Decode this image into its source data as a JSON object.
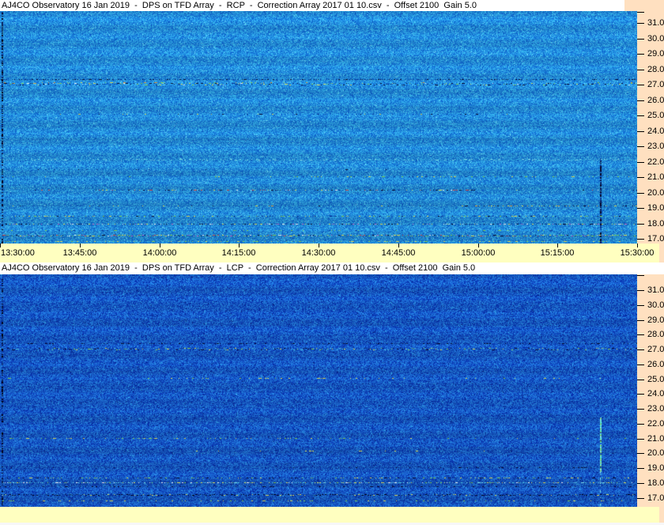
{
  "window": {
    "background": "#FFE0C0",
    "time_strip_bg": "#FFFFC0",
    "titlebar_bg": "#FFFFFF",
    "text_color": "#000000"
  },
  "panels": [
    {
      "title": "AJ4CO Observatory 16 Jan 2019  -  DPS on TFD Array  -  RCP  -  Correction Array 2017 01 10.csv  -  Offset 2100  Gain 5.0",
      "freq_ticks": [
        "31.0",
        "30.0",
        "29.0",
        "28.0",
        "27.0",
        "26.0",
        "25.0",
        "24.0",
        "23.0",
        "22.0",
        "21.0",
        "20.0",
        "19.0",
        "18.0",
        "17.0"
      ],
      "time_ticks": [
        "13:30:00",
        "13:45:00",
        "14:00:00",
        "14:15:00",
        "14:30:00",
        "14:45:00",
        "15:00:00",
        "15:15:00",
        "15:30:00"
      ]
    },
    {
      "title": "AJ4CO Observatory 16 Jan 2019  -  DPS on TFD Array  -  LCP  -  Correction Array 2017 01 10.csv  -  Offset 2100  Gain 5.0",
      "freq_ticks": [
        "31.0",
        "30.0",
        "29.0",
        "28.0",
        "27.0",
        "26.0",
        "25.0",
        "24.0",
        "23.0",
        "22.0",
        "21.0",
        "20.0",
        "19.0",
        "18.0",
        "17.0"
      ],
      "time_ticks": []
    }
  ],
  "speckle_colors": {
    "yellow": "#D8D855",
    "green": "#7CC850",
    "white": "#F0F0F0",
    "red": "#C84040",
    "magenta": "#C060C0",
    "dark": "#06062A",
    "navy": "#0A3C96",
    "black": "#000010",
    "cyan": "#50C8DC",
    "lightcyan": "#7CDCE6",
    "brightcyan": "#50E6C8",
    "orange": "#D89A3C"
  },
  "chart_data": [
    {
      "type": "heatmap",
      "title": "AJ4CO Observatory 16 Jan 2019  -  DPS on TFD Array  -  RCP  -  Correction Array 2017 01 10.csv  -  Offset 2100  Gain 5.0",
      "polarization": "RCP",
      "time_start": "13:30:00",
      "time_end": "15:30:00",
      "time_tick_interval_min": 15,
      "freq_axis_mhz": [
        17.0,
        31.0
      ],
      "freq_tick_step_mhz": 1.0,
      "legend_position": "none",
      "grid": false,
      "base": {
        "dark": "#0A58BE",
        "light": "#38B4E4",
        "spark": "#82E6F0",
        "dark_spark": "#063C9B",
        "spark_p": 0.03,
        "dark_spark_p": 0.02
      },
      "bands": [
        {
          "f": 27.35,
          "h": 1,
          "density": 0.4,
          "x0": 0,
          "x1": 1,
          "colors": [
            "navy",
            "dark"
          ]
        },
        {
          "f": 27.05,
          "h": 3,
          "density": 0.55,
          "x0": 0,
          "x1": 1,
          "colors": [
            "dark",
            "navy",
            "dark",
            "yellow",
            "green",
            "white",
            "navy",
            "dark"
          ]
        },
        {
          "f": 27.1,
          "h": 2,
          "density": 0.15,
          "x0": 0,
          "x1": 0.45,
          "colors": [
            "yellow",
            "orange",
            "green"
          ]
        },
        {
          "f": 25.1,
          "h": 1,
          "density": 0.09,
          "x0": 0.05,
          "x1": 0.75,
          "colors": [
            "navy",
            "dark",
            "yellow"
          ]
        },
        {
          "f": 22.15,
          "h": 2,
          "density": 0.22,
          "x0": 0,
          "x1": 1,
          "colors": [
            "lightcyan"
          ]
        },
        {
          "f": 21.5,
          "h": 1,
          "density": 0.12,
          "x0": 0.03,
          "x1": 0.25,
          "colors": [
            "navy",
            "dark"
          ]
        },
        {
          "f": 21.05,
          "h": 1,
          "density": 0.15,
          "x0": 0.45,
          "x1": 1,
          "colors": [
            "yellow",
            "green",
            "navy"
          ]
        },
        {
          "f": 20.2,
          "h": 1,
          "density": 0.3,
          "x0": 0.15,
          "x1": 0.75,
          "colors": [
            "dark",
            "white",
            "yellow",
            "red",
            "navy",
            "dark"
          ]
        },
        {
          "f": 19.15,
          "h": 1,
          "density": 0.2,
          "x0": 0.72,
          "x1": 1,
          "colors": [
            "yellow",
            "orange",
            "dark"
          ]
        },
        {
          "f": 18.5,
          "h": 1,
          "density": 0.3,
          "x0": 0.02,
          "x1": 1,
          "colors": [
            "yellow",
            "green",
            "navy",
            "dark",
            "cyan"
          ]
        },
        {
          "f": 17.95,
          "h": 1,
          "density": 0.38,
          "x0": 0,
          "x1": 1,
          "colors": [
            "dark",
            "navy",
            "dark",
            "yellow",
            "magenta",
            "white"
          ]
        },
        {
          "f": 17.55,
          "h": 1,
          "density": 0.1,
          "x0": 0,
          "x1": 1,
          "colors": [
            "green",
            "navy"
          ]
        },
        {
          "f": 17.2,
          "h": 2,
          "density": 0.6,
          "x0": 0,
          "x1": 1,
          "colors": [
            "yellow",
            "green",
            "white",
            "red",
            "dark",
            "magenta",
            "yellow",
            "green"
          ]
        },
        {
          "f": 16.85,
          "h": 1,
          "density": 0.25,
          "x0": 0,
          "x1": 1,
          "colors": [
            "green",
            "yellow",
            "cyan"
          ]
        }
      ],
      "verticals": [
        {
          "x_frac": 0.002,
          "f0": 31.8,
          "f1": 16.7,
          "width": 2,
          "density": 0.5,
          "colors": [
            "dark",
            "navy",
            "black"
          ]
        },
        {
          "x_frac": 0.943,
          "f0": 22.3,
          "f1": 16.7,
          "width": 2,
          "density": 0.8,
          "colors": [
            "navy",
            "dark"
          ]
        }
      ]
    },
    {
      "type": "heatmap",
      "title": "AJ4CO Observatory 16 Jan 2019  -  DPS on TFD Array  -  LCP  -  Correction Array 2017 01 10.csv  -  Offset 2100  Gain 5.0",
      "polarization": "LCP",
      "time_start": "13:30:00",
      "time_end": "15:30:00",
      "time_tick_interval_min": 15,
      "freq_axis_mhz": [
        17.0,
        31.0
      ],
      "freq_tick_step_mhz": 1.0,
      "legend_position": "none",
      "grid": false,
      "base": {
        "dark": "#0528A0",
        "light": "#2582DC",
        "spark": "#41BEE8",
        "dark_spark": "#021264",
        "spark_p": 0.02,
        "dark_spark_p": 0.03
      },
      "bands": [
        {
          "f": 27.45,
          "h": 1,
          "density": 0.35,
          "x0": 0,
          "x1": 1,
          "colors": [
            "navy",
            "dark"
          ]
        },
        {
          "f": 27.05,
          "h": 3,
          "density": 0.5,
          "x0": 0,
          "x1": 1,
          "colors": [
            "green",
            "yellow",
            "cyan",
            "dark",
            "navy",
            "green",
            "dark"
          ]
        },
        {
          "f": 25.1,
          "h": 1,
          "density": 0.1,
          "x0": 0.25,
          "x1": 0.45,
          "colors": [
            "yellow",
            "green"
          ]
        },
        {
          "f": 25.1,
          "h": 1,
          "density": 0.04,
          "x0": 0.45,
          "x1": 0.9,
          "colors": [
            "yellow",
            "navy"
          ]
        },
        {
          "f": 21.05,
          "h": 1,
          "density": 0.12,
          "x0": 0,
          "x1": 0.55,
          "colors": [
            "yellow",
            "green"
          ]
        },
        {
          "f": 20.15,
          "h": 1,
          "density": 0.07,
          "x0": 0.3,
          "x1": 0.8,
          "colors": [
            "navy",
            "yellow"
          ]
        },
        {
          "f": 19.05,
          "h": 1,
          "density": 0.2,
          "x0": 0.55,
          "x1": 0.95,
          "colors": [
            "dark",
            "navy"
          ]
        },
        {
          "f": 18.35,
          "h": 1,
          "density": 0.25,
          "x0": 0,
          "x1": 1,
          "colors": [
            "yellow",
            "navy",
            "green",
            "dark"
          ]
        },
        {
          "f": 18.05,
          "h": 1,
          "density": 0.4,
          "x0": 0,
          "x1": 1,
          "colors": [
            "cyan",
            "yellow",
            "white",
            "green",
            "lightcyan"
          ]
        },
        {
          "f": 17.8,
          "h": 1,
          "density": 0.2,
          "x0": 0,
          "x1": 1,
          "colors": [
            "dark",
            "navy"
          ]
        },
        {
          "f": 17.2,
          "h": 2,
          "density": 0.7,
          "x0": 0,
          "x1": 1,
          "colors": [
            "black",
            "dark",
            "navy",
            "dark",
            "black",
            "yellow"
          ]
        },
        {
          "f": 16.8,
          "h": 1,
          "density": 0.18,
          "x0": 0,
          "x1": 1,
          "colors": [
            "green",
            "navy",
            "yellow"
          ]
        }
      ],
      "verticals": [
        {
          "x_frac": 0.002,
          "f0": 31.8,
          "f1": 16.5,
          "width": 2,
          "density": 0.5,
          "colors": [
            "dark",
            "navy",
            "black"
          ]
        },
        {
          "x_frac": 0.943,
          "f0": 22.4,
          "f1": 18.8,
          "width": 2,
          "density": 0.9,
          "colors": [
            "brightcyan",
            "green",
            "lightcyan"
          ]
        },
        {
          "x_frac": 0.943,
          "f0": 18.8,
          "f1": 16.5,
          "width": 1,
          "density": 0.3,
          "colors": [
            "lightcyan"
          ]
        }
      ]
    }
  ]
}
